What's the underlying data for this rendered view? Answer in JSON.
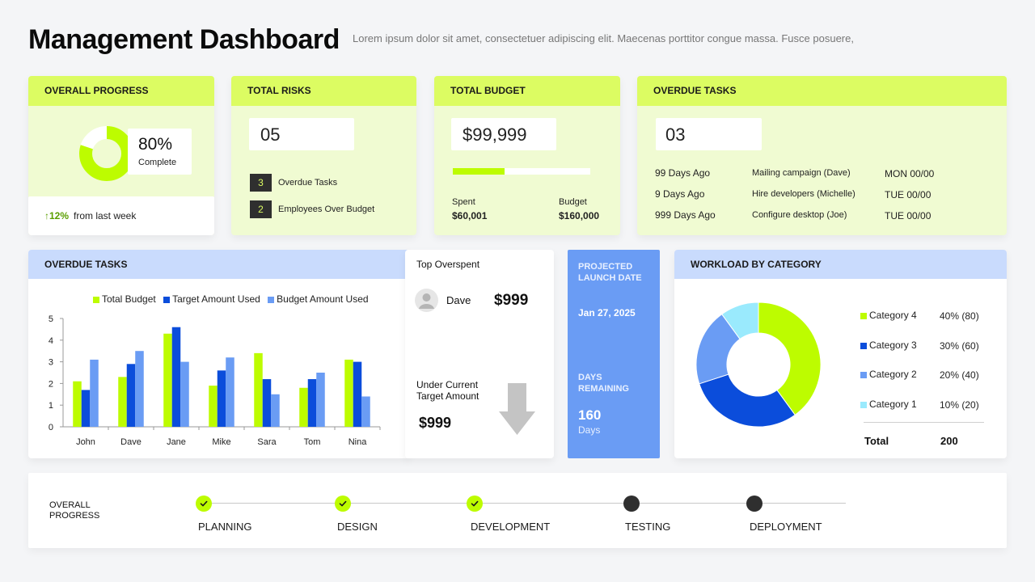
{
  "header": {
    "title": "Management Dashboard",
    "subtitle": "Lorem ipsum dolor sit amet, consectetuer adipiscing elit. Maecenas porttitor congue massa. Fusce posuere,"
  },
  "overall_progress": {
    "label": "OVERALL PROGRESS",
    "percent_text": "80%",
    "percent": 80,
    "complete_label": "Complete",
    "change_text": "↑12%",
    "change_suffix": "from last week"
  },
  "total_risks": {
    "label": "TOTAL RISKS",
    "value": "05",
    "items": [
      {
        "count": "3",
        "label": "Overdue Tasks"
      },
      {
        "count": "2",
        "label": "Employees Over Budget"
      }
    ]
  },
  "total_budget": {
    "label": "TOTAL BUDGET",
    "value": "$99,999",
    "fill_fraction": 0.375,
    "spent_label": "Spent",
    "spent_value": "$60,001",
    "budget_label": "Budget",
    "budget_value": "$160,000"
  },
  "overdue_tasks_top": {
    "label": "OVERDUE TASKS",
    "value": "03",
    "rows": [
      {
        "ago": "99 Days Ago",
        "task": "Mailing campaign (Dave)",
        "date": "MON 00/00"
      },
      {
        "ago": "9 Days Ago",
        "task": "Hire developers (Michelle)",
        "date": "TUE 00/00"
      },
      {
        "ago": "999 Days Ago",
        "task": "Configure desktop (Joe)",
        "date": "TUE 00/00"
      }
    ]
  },
  "overdue_chart_card": {
    "label": "OVERDUE TASKS"
  },
  "chart_data": {
    "type": "bar",
    "categories": [
      "John",
      "Dave",
      "Jane",
      "Mike",
      "Sara",
      "Tom",
      "Nina"
    ],
    "series": [
      {
        "name": "Total Budget",
        "color": "#bdfc00",
        "values": [
          2.1,
          2.3,
          4.3,
          1.9,
          3.4,
          1.8,
          3.1
        ]
      },
      {
        "name": "Target Amount Used",
        "color": "#0b4ddb",
        "values": [
          1.7,
          2.9,
          4.6,
          2.6,
          2.2,
          2.2,
          3.0
        ]
      },
      {
        "name": "Budget Amount Used",
        "color": "#6a9cf4",
        "values": [
          3.1,
          3.5,
          3.0,
          3.2,
          1.5,
          2.5,
          1.4
        ]
      }
    ],
    "yticks": [
      "0",
      "1",
      "2",
      "3",
      "4",
      "5"
    ],
    "ylim": [
      0,
      5
    ],
    "legend": "top"
  },
  "top_overspent": {
    "label": "Top Overspent",
    "name": "Dave",
    "amount": "$999",
    "under_label_1": "Under Current",
    "under_label_2": "Target Amount",
    "under_value": "$999"
  },
  "launch": {
    "label_1": "PROJECTED",
    "label_2": "LAUNCH DATE",
    "date": "Jan 27, 2025",
    "days_label_1": "DAYS",
    "days_label_2": "REMAINING",
    "days_value": "160",
    "days_unit": "Days"
  },
  "workload": {
    "label": "WORKLOAD BY CATEGORY",
    "categories": [
      {
        "name": "Category 4",
        "value": "40% (80)",
        "amount": 80,
        "color": "#bdfc00"
      },
      {
        "name": "Category 3",
        "value": "30% (60)",
        "amount": 60,
        "color": "#0b4ddb"
      },
      {
        "name": "Category 2",
        "value": "20% (40)",
        "amount": 40,
        "color": "#6a9cf4"
      },
      {
        "name": "Category 1",
        "value": "10% (20)",
        "amount": 20,
        "color": "#9aeafd"
      }
    ],
    "total_label": "Total",
    "total_value": "200"
  },
  "timeline": {
    "label_1": "OVERALL",
    "label_2": "PROGRESS",
    "steps": [
      {
        "label": "PLANNING",
        "done": true
      },
      {
        "label": "DESIGN",
        "done": true
      },
      {
        "label": "DEVELOPMENT",
        "done": true
      },
      {
        "label": "TESTING",
        "done": false
      },
      {
        "label": "DEPLOYMENT",
        "done": false
      }
    ]
  },
  "colors": {
    "accent_green": "#dcfc62",
    "bright_green": "#bdfc00",
    "blue_dark": "#0b4ddb",
    "blue_mid": "#6a9cf4",
    "blue_head": "#c9dbfd",
    "launch_blue": "#6a9cf4"
  }
}
